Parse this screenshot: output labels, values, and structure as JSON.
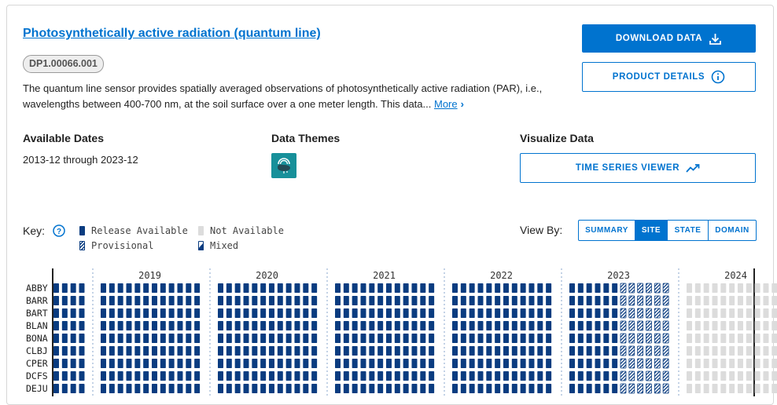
{
  "product": {
    "title": "Photosynthetically active radiation (quantum line)",
    "code": "DP1.00066.001",
    "description": "The quantum line sensor provides spatially averaged observations of photosynthetically active radiation (PAR), i.e., wavelengths between 400-700 nm, at the soil surface over a one meter length. This data...",
    "more_label": "More"
  },
  "actions": {
    "download_label": "DOWNLOAD DATA",
    "details_label": "PRODUCT DETAILS",
    "time_series_label": "TIME SERIES VIEWER"
  },
  "sections": {
    "available_dates_heading": "Available Dates",
    "available_dates_value": "2013-12 through 2023-12",
    "data_themes_heading": "Data Themes",
    "data_themes_icon": "atmosphere-icon",
    "visualize_heading": "Visualize Data"
  },
  "key": {
    "label": "Key:",
    "items": [
      {
        "label": "Release Available",
        "status": "available"
      },
      {
        "label": "Not Available",
        "status": "not_available"
      },
      {
        "label": "Provisional",
        "status": "provisional"
      },
      {
        "label": "Mixed",
        "status": "mixed"
      }
    ]
  },
  "view_by": {
    "label": "View By:",
    "options": [
      "SUMMARY",
      "SITE",
      "STATE",
      "DOMAIN"
    ],
    "selected": "SITE"
  },
  "colors": {
    "accent": "#0073cf",
    "available": "#0a3c80",
    "not_available": "#dcdcdc",
    "theme_icon_bg": "#17909a"
  },
  "availability": {
    "years": [
      "2019",
      "2020",
      "2021",
      "2022",
      "2023",
      "2024"
    ],
    "sites": [
      "ABBY",
      "BARR",
      "BART",
      "BLAN",
      "BONA",
      "CLBJ",
      "CPER",
      "DCFS",
      "DEJU"
    ],
    "partial_start_months_available": 4,
    "year_2023": {
      "available_months": 6,
      "provisional_months": 6
    },
    "year_2024": {
      "not_available_months": 12
    }
  }
}
